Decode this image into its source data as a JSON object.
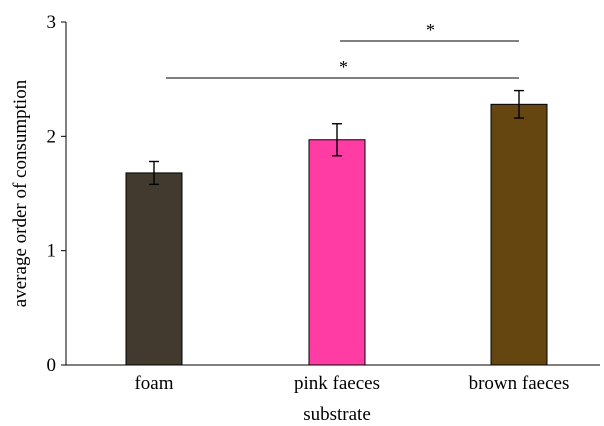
{
  "chart_data": {
    "type": "bar",
    "title": "",
    "xlabel": "substrate",
    "ylabel": "average order of consumption",
    "ylim": [
      0,
      3
    ],
    "yticks": [
      "0",
      "1",
      "2",
      "3"
    ],
    "categories": [
      "foam",
      "pink faeces",
      "brown faeces"
    ],
    "values": [
      1.68,
      1.97,
      2.28
    ],
    "errors": [
      0.1,
      0.14,
      0.12
    ],
    "colors": [
      "#433a2f",
      "#fe3ca4",
      "#654510"
    ],
    "grid": false,
    "legend": "none",
    "significance": [
      {
        "from": 1,
        "to": 2,
        "label": "*"
      },
      {
        "from": 0,
        "to": 2,
        "label": "*"
      }
    ]
  }
}
